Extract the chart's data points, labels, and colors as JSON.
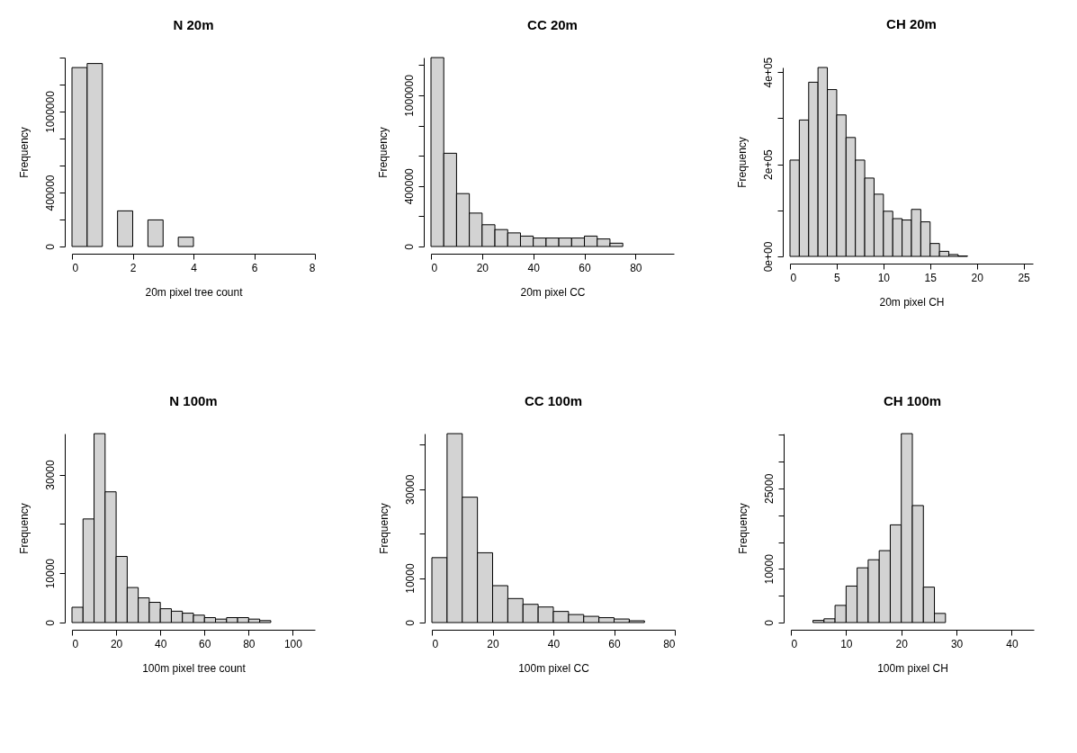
{
  "chart_data": [
    {
      "type": "histogram",
      "title": "N 20m",
      "xlabel": "20m pixel tree count",
      "ylabel": "Frequency",
      "color": "#d3d3d3",
      "bins": [
        0,
        0.5,
        1,
        1.5,
        2,
        2.5,
        3,
        3.5,
        4,
        4.5,
        5,
        5.5,
        6,
        6.5,
        7,
        7.5,
        8
      ],
      "values": [
        1326000,
        1356000,
        0,
        264000,
        0,
        197000,
        0,
        69000,
        0,
        0,
        0,
        0,
        0,
        0,
        0,
        0
      ],
      "xlim": [
        0,
        8
      ],
      "ylim": [
        0,
        1400000
      ],
      "xticks": [
        0,
        2,
        4,
        6,
        8
      ],
      "yticks": [
        0,
        {
          "value": 200000,
          "label": null
        },
        400000,
        {
          "value": 600000,
          "label": null
        },
        {
          "value": 800000,
          "label": null
        },
        1000000,
        {
          "value": 1200000,
          "label": null
        },
        {
          "value": 1400000,
          "label": null
        }
      ]
    },
    {
      "type": "histogram",
      "title": "CC 20m",
      "xlabel": "20m pixel CC",
      "ylabel": "Frequency",
      "color": "#d3d3d3",
      "bins": [
        0,
        5,
        10,
        15,
        20,
        25,
        30,
        35,
        40,
        45,
        50,
        55,
        60,
        65,
        70,
        75,
        80,
        85,
        90,
        95
      ],
      "values": [
        1250000,
        617000,
        350000,
        221000,
        144000,
        112000,
        90000,
        69000,
        56000,
        56000,
        56000,
        56000,
        69000,
        50000,
        22000,
        0,
        0,
        0,
        0
      ],
      "xlim": [
        0,
        95
      ],
      "ylim": [
        0,
        1250000
      ],
      "xticks": [
        0,
        20,
        40,
        60,
        80
      ],
      "yticks": [
        0,
        {
          "value": 200000,
          "label": null
        },
        400000,
        {
          "value": 600000,
          "label": null
        },
        {
          "value": 800000,
          "label": null
        },
        1000000,
        {
          "value": 1200000,
          "label": null
        }
      ]
    },
    {
      "type": "histogram",
      "title": "CH 20m",
      "xlabel": "20m pixel CH",
      "ylabel": "Frequency",
      "color": "#d3d3d3",
      "bins": [
        0,
        1,
        2,
        3,
        4,
        5,
        6,
        7,
        8,
        9,
        10,
        11,
        12,
        13,
        14,
        15,
        16,
        17,
        18,
        19,
        20,
        21,
        22,
        23,
        24,
        25,
        26
      ],
      "values": [
        209000,
        296000,
        378000,
        410000,
        362000,
        307000,
        258000,
        209000,
        170000,
        135000,
        98000,
        82000,
        79000,
        102000,
        75000,
        28000,
        11000,
        4000,
        1000,
        0,
        0,
        0,
        0,
        0,
        0,
        0
      ],
      "xlim": [
        0,
        26
      ],
      "ylim": [
        0,
        410000
      ],
      "xticks": [
        0,
        5,
        10,
        15,
        20,
        25
      ],
      "yticks": [
        {
          "value": 0,
          "label": "0e+00"
        },
        {
          "value": 100000,
          "label": null
        },
        {
          "value": 200000,
          "label": "2e+05"
        },
        {
          "value": 300000,
          "label": null
        },
        {
          "value": 400000,
          "label": "4e+05"
        }
      ]
    },
    {
      "type": "histogram",
      "title": "N 100m",
      "xlabel": "100m pixel tree count",
      "ylabel": "Frequency",
      "color": "#d3d3d3",
      "bins": [
        0,
        5,
        10,
        15,
        20,
        25,
        30,
        35,
        40,
        45,
        50,
        55,
        60,
        65,
        70,
        75,
        80,
        85,
        90,
        95,
        100,
        105,
        110
      ],
      "values": [
        3100,
        21000,
        38300,
        26500,
        13400,
        7100,
        5000,
        4100,
        2800,
        2300,
        1900,
        1500,
        1000,
        700,
        1000,
        1000,
        700,
        400,
        0,
        0,
        0,
        0
      ],
      "xlim": [
        0,
        110
      ],
      "ylim": [
        0,
        38300
      ],
      "xticks": [
        0,
        20,
        40,
        60,
        80,
        100
      ],
      "yticks": [
        0,
        10000,
        {
          "value": 20000,
          "label": null
        },
        30000
      ]
    },
    {
      "type": "histogram",
      "title": "CC 100m",
      "xlabel": "100m pixel CC",
      "ylabel": "Frequency",
      "color": "#d3d3d3",
      "bins": [
        0,
        5,
        10,
        15,
        20,
        25,
        30,
        35,
        40,
        45,
        50,
        55,
        60,
        65,
        70,
        75,
        80
      ],
      "values": [
        14600,
        42500,
        28200,
        15700,
        8300,
        5400,
        4100,
        3500,
        2500,
        1800,
        1400,
        1100,
        800,
        400,
        0,
        0
      ],
      "xlim": [
        0,
        80
      ],
      "ylim": [
        0,
        42500
      ],
      "xticks": [
        0,
        20,
        40,
        60,
        80
      ],
      "yticks": [
        0,
        10000,
        {
          "value": 20000,
          "label": null
        },
        30000,
        {
          "value": 40000,
          "label": null
        }
      ]
    },
    {
      "type": "histogram",
      "title": "CH 100m",
      "xlabel": "100m pixel CH",
      "ylabel": "Frequency",
      "color": "#d3d3d3",
      "bins": [
        0,
        2,
        4,
        6,
        8,
        10,
        12,
        14,
        16,
        18,
        20,
        22,
        24,
        26,
        28,
        30,
        32,
        34,
        36,
        38,
        40,
        42,
        44
      ],
      "values": [
        0,
        0,
        400,
        700,
        3200,
        6800,
        10200,
        11700,
        13400,
        18200,
        35200,
        21800,
        6600,
        1700,
        0,
        0,
        0,
        0,
        0,
        0,
        0,
        0
      ],
      "xlim": [
        0,
        44
      ],
      "ylim": [
        0,
        35200
      ],
      "xticks": [
        0,
        10,
        20,
        30,
        40
      ],
      "yticks": [
        0,
        {
          "value": 5000,
          "label": null
        },
        10000,
        {
          "value": 15000,
          "label": null
        },
        {
          "value": 20000,
          "label": null
        },
        25000,
        {
          "value": 30000,
          "label": null
        },
        {
          "value": 35000,
          "label": null
        }
      ]
    }
  ]
}
